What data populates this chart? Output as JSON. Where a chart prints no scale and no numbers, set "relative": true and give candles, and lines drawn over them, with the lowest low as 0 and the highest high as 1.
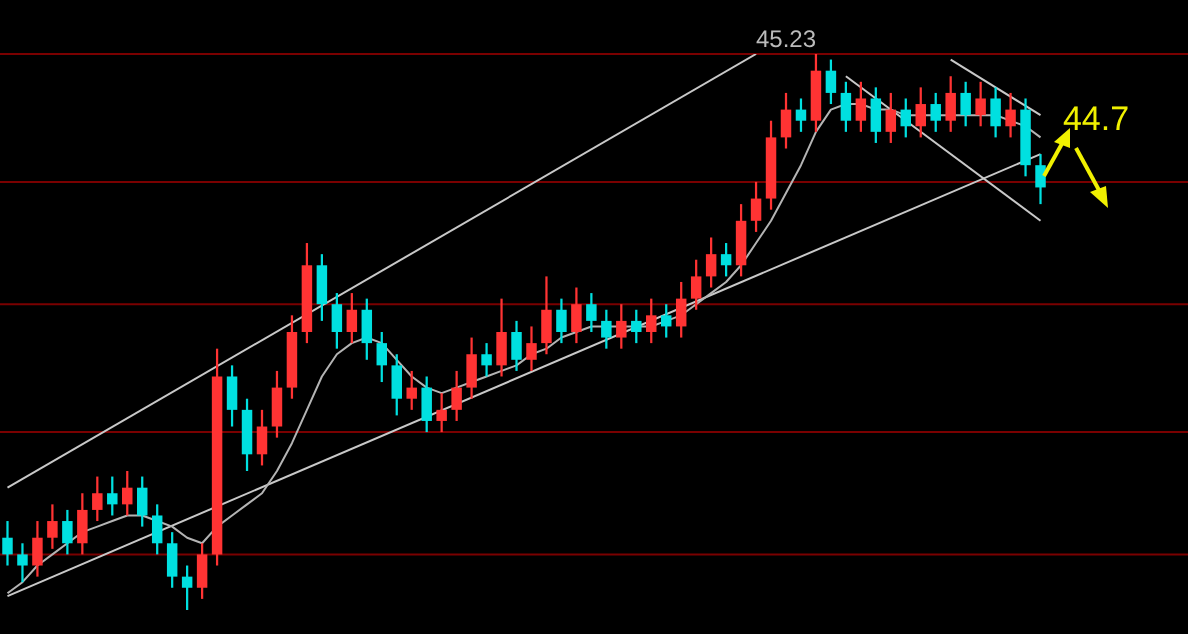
{
  "chart_data": {
    "type": "candlestick",
    "relative": true,
    "categories": [
      null,
      null,
      null,
      null,
      null,
      null,
      null,
      null,
      null,
      null,
      null,
      null,
      null,
      null,
      null,
      null,
      null,
      null,
      null,
      null,
      null,
      null,
      null,
      null,
      null,
      null,
      null,
      null,
      null,
      null,
      null,
      null,
      null,
      null,
      null,
      null,
      null,
      null,
      null,
      null,
      null,
      null,
      null,
      null,
      null,
      null,
      null,
      null,
      null,
      null,
      null,
      null,
      null,
      null,
      null,
      null,
      null,
      null,
      null,
      null,
      null,
      null,
      null,
      null,
      null,
      null,
      null,
      null,
      null,
      null
    ],
    "ohlc": [
      [
        0.13,
        0.16,
        0.08,
        0.1
      ],
      [
        0.1,
        0.12,
        0.05,
        0.08
      ],
      [
        0.08,
        0.16,
        0.06,
        0.13
      ],
      [
        0.13,
        0.19,
        0.11,
        0.16
      ],
      [
        0.16,
        0.18,
        0.1,
        0.12
      ],
      [
        0.12,
        0.21,
        0.1,
        0.18
      ],
      [
        0.18,
        0.24,
        0.16,
        0.21
      ],
      [
        0.21,
        0.24,
        0.17,
        0.19
      ],
      [
        0.19,
        0.25,
        0.17,
        0.22
      ],
      [
        0.22,
        0.24,
        0.15,
        0.17
      ],
      [
        0.17,
        0.19,
        0.1,
        0.12
      ],
      [
        0.12,
        0.14,
        0.04,
        0.06
      ],
      [
        0.06,
        0.08,
        0.0,
        0.04
      ],
      [
        0.04,
        0.12,
        0.02,
        0.1
      ],
      [
        0.1,
        0.47,
        0.08,
        0.42
      ],
      [
        0.42,
        0.44,
        0.33,
        0.36
      ],
      [
        0.36,
        0.38,
        0.25,
        0.28
      ],
      [
        0.28,
        0.36,
        0.26,
        0.33
      ],
      [
        0.33,
        0.43,
        0.31,
        0.4
      ],
      [
        0.4,
        0.53,
        0.38,
        0.5
      ],
      [
        0.5,
        0.66,
        0.48,
        0.62
      ],
      [
        0.62,
        0.64,
        0.52,
        0.55
      ],
      [
        0.55,
        0.57,
        0.47,
        0.5
      ],
      [
        0.5,
        0.57,
        0.48,
        0.54
      ],
      [
        0.54,
        0.56,
        0.45,
        0.48
      ],
      [
        0.48,
        0.5,
        0.41,
        0.44
      ],
      [
        0.44,
        0.46,
        0.35,
        0.38
      ],
      [
        0.38,
        0.43,
        0.36,
        0.4
      ],
      [
        0.4,
        0.42,
        0.32,
        0.34
      ],
      [
        0.34,
        0.39,
        0.32,
        0.36
      ],
      [
        0.36,
        0.43,
        0.34,
        0.4
      ],
      [
        0.4,
        0.49,
        0.38,
        0.46
      ],
      [
        0.46,
        0.48,
        0.42,
        0.44
      ],
      [
        0.44,
        0.56,
        0.42,
        0.5
      ],
      [
        0.5,
        0.52,
        0.43,
        0.45
      ],
      [
        0.45,
        0.51,
        0.43,
        0.48
      ],
      [
        0.48,
        0.6,
        0.46,
        0.54
      ],
      [
        0.54,
        0.56,
        0.48,
        0.5
      ],
      [
        0.5,
        0.58,
        0.48,
        0.55
      ],
      [
        0.55,
        0.57,
        0.5,
        0.52
      ],
      [
        0.52,
        0.54,
        0.47,
        0.49
      ],
      [
        0.49,
        0.55,
        0.47,
        0.52
      ],
      [
        0.52,
        0.54,
        0.48,
        0.5
      ],
      [
        0.5,
        0.56,
        0.48,
        0.53
      ],
      [
        0.53,
        0.55,
        0.49,
        0.51
      ],
      [
        0.51,
        0.59,
        0.49,
        0.56
      ],
      [
        0.56,
        0.63,
        0.54,
        0.6
      ],
      [
        0.6,
        0.67,
        0.58,
        0.64
      ],
      [
        0.64,
        0.66,
        0.6,
        0.62
      ],
      [
        0.62,
        0.73,
        0.6,
        0.7
      ],
      [
        0.7,
        0.77,
        0.68,
        0.74
      ],
      [
        0.74,
        0.88,
        0.72,
        0.85
      ],
      [
        0.85,
        0.93,
        0.83,
        0.9
      ],
      [
        0.9,
        0.92,
        0.86,
        0.88
      ],
      [
        0.88,
        1.0,
        0.86,
        0.97
      ],
      [
        0.97,
        0.99,
        0.91,
        0.93
      ],
      [
        0.93,
        0.95,
        0.86,
        0.88
      ],
      [
        0.88,
        0.95,
        0.86,
        0.92
      ],
      [
        0.92,
        0.94,
        0.84,
        0.86
      ],
      [
        0.86,
        0.93,
        0.84,
        0.9
      ],
      [
        0.9,
        0.92,
        0.85,
        0.87
      ],
      [
        0.87,
        0.94,
        0.85,
        0.91
      ],
      [
        0.91,
        0.93,
        0.86,
        0.88
      ],
      [
        0.88,
        0.96,
        0.86,
        0.93
      ],
      [
        0.93,
        0.95,
        0.87,
        0.89
      ],
      [
        0.89,
        0.95,
        0.87,
        0.92
      ],
      [
        0.92,
        0.94,
        0.85,
        0.87
      ],
      [
        0.87,
        0.93,
        0.85,
        0.9
      ],
      [
        0.9,
        0.92,
        0.78,
        0.8
      ],
      [
        0.8,
        0.82,
        0.73,
        0.76
      ]
    ],
    "colors": [
      "#00e0e0",
      "#00e0e0",
      "#ff3333",
      "#ff3333",
      "#00e0e0",
      "#ff3333",
      "#ff3333",
      "#00e0e0",
      "#ff3333",
      "#00e0e0",
      "#00e0e0",
      "#00e0e0",
      "#00e0e0",
      "#ff3333",
      "#ff3333",
      "#00e0e0",
      "#00e0e0",
      "#ff3333",
      "#ff3333",
      "#ff3333",
      "#ff3333",
      "#00e0e0",
      "#00e0e0",
      "#ff3333",
      "#00e0e0",
      "#00e0e0",
      "#00e0e0",
      "#ff3333",
      "#00e0e0",
      "#ff3333",
      "#ff3333",
      "#ff3333",
      "#00e0e0",
      "#ff3333",
      "#00e0e0",
      "#ff3333",
      "#ff3333",
      "#00e0e0",
      "#ff3333",
      "#00e0e0",
      "#00e0e0",
      "#ff3333",
      "#00e0e0",
      "#ff3333",
      "#00e0e0",
      "#ff3333",
      "#ff3333",
      "#ff3333",
      "#00e0e0",
      "#ff3333",
      "#ff3333",
      "#ff3333",
      "#ff3333",
      "#00e0e0",
      "#ff3333",
      "#00e0e0",
      "#00e0e0",
      "#ff3333",
      "#00e0e0",
      "#ff3333",
      "#00e0e0",
      "#ff3333",
      "#00e0e0",
      "#ff3333",
      "#00e0e0",
      "#ff3333",
      "#00e0e0",
      "#ff3333",
      "#00e0e0",
      "#00e0e0"
    ],
    "series": [
      {
        "type": "line",
        "color": "#b4b4b4",
        "values": [
          0.03,
          0.05,
          0.08,
          0.1,
          0.12,
          0.14,
          0.15,
          0.16,
          0.17,
          0.17,
          0.16,
          0.15,
          0.13,
          0.12,
          0.15,
          0.17,
          0.19,
          0.21,
          0.25,
          0.3,
          0.36,
          0.42,
          0.46,
          0.48,
          0.49,
          0.48,
          0.45,
          0.42,
          0.4,
          0.39,
          0.4,
          0.41,
          0.42,
          0.43,
          0.44,
          0.46,
          0.47,
          0.49,
          0.5,
          0.51,
          0.51,
          0.51,
          0.51,
          0.51,
          0.52,
          0.53,
          0.55,
          0.57,
          0.59,
          0.62,
          0.66,
          0.7,
          0.75,
          0.8,
          0.86,
          0.9,
          0.91,
          0.91,
          0.9,
          0.9,
          0.89,
          0.89,
          0.89,
          0.89,
          0.89,
          0.89,
          0.89,
          0.88,
          0.87,
          0.85
        ]
      },
      {
        "type": "line",
        "color": "#c8c8c8",
        "values": [
          0.22,
          null,
          null,
          null,
          null,
          null,
          null,
          null,
          null,
          null,
          null,
          null,
          null,
          null,
          null,
          null,
          null,
          null,
          null,
          null,
          null,
          null,
          null,
          null,
          null,
          null,
          null,
          null,
          null,
          null,
          null,
          null,
          null,
          null,
          null,
          null,
          null,
          null,
          null,
          null,
          null,
          null,
          null,
          null,
          null,
          null,
          null,
          null,
          null,
          null,
          1.0,
          null,
          null,
          null,
          null,
          null,
          null,
          null,
          null,
          null,
          null,
          null,
          null,
          null,
          null,
          null,
          null,
          null,
          null,
          null
        ]
      },
      {
        "type": "line",
        "color": "#c8c8c8",
        "values": [
          0.025,
          null,
          null,
          null,
          null,
          null,
          null,
          null,
          null,
          null,
          null,
          null,
          null,
          null,
          null,
          null,
          null,
          null,
          null,
          null,
          null,
          null,
          null,
          null,
          null,
          null,
          null,
          null,
          null,
          null,
          null,
          null,
          null,
          null,
          null,
          null,
          null,
          null,
          null,
          null,
          null,
          null,
          null,
          null,
          null,
          null,
          null,
          null,
          null,
          null,
          null,
          null,
          null,
          null,
          null,
          null,
          null,
          null,
          null,
          null,
          null,
          null,
          null,
          null,
          null,
          null,
          null,
          null,
          null,
          0.82
        ]
      },
      {
        "type": "line",
        "color": "#c8c8c8",
        "values": [
          null,
          null,
          null,
          null,
          null,
          null,
          null,
          null,
          null,
          null,
          null,
          null,
          null,
          null,
          null,
          null,
          null,
          null,
          null,
          null,
          null,
          null,
          null,
          null,
          null,
          null,
          null,
          null,
          null,
          null,
          null,
          null,
          null,
          null,
          null,
          null,
          null,
          null,
          null,
          null,
          null,
          null,
          null,
          null,
          null,
          null,
          null,
          null,
          null,
          null,
          null,
          null,
          null,
          null,
          null,
          null,
          null,
          null,
          null,
          null,
          null,
          null,
          null,
          0.99,
          null,
          null,
          null,
          null,
          null,
          0.89
        ]
      },
      {
        "type": "line",
        "color": "#c8c8c8",
        "values": [
          null,
          null,
          null,
          null,
          null,
          null,
          null,
          null,
          null,
          null,
          null,
          null,
          null,
          null,
          null,
          null,
          null,
          null,
          null,
          null,
          null,
          null,
          null,
          null,
          null,
          null,
          null,
          null,
          null,
          null,
          null,
          null,
          null,
          null,
          null,
          null,
          null,
          null,
          null,
          null,
          null,
          null,
          null,
          null,
          null,
          null,
          null,
          null,
          null,
          null,
          null,
          null,
          null,
          null,
          null,
          null,
          0.96,
          null,
          null,
          null,
          null,
          null,
          null,
          null,
          null,
          null,
          null,
          null,
          null,
          0.7
        ]
      }
    ],
    "ref_lines": [
      {
        "axis": "y",
        "value": 1.0,
        "color": "#7a0000"
      },
      {
        "axis": "y",
        "value": 0.77,
        "color": "#7a0000"
      },
      {
        "axis": "y",
        "value": 0.55,
        "color": "#7a0000"
      },
      {
        "axis": "y",
        "value": 0.32,
        "color": "#7a0000"
      },
      {
        "axis": "y",
        "value": 0.1,
        "color": "#7a0000"
      }
    ],
    "annotations": [
      "45.23",
      "44.7"
    ]
  }
}
